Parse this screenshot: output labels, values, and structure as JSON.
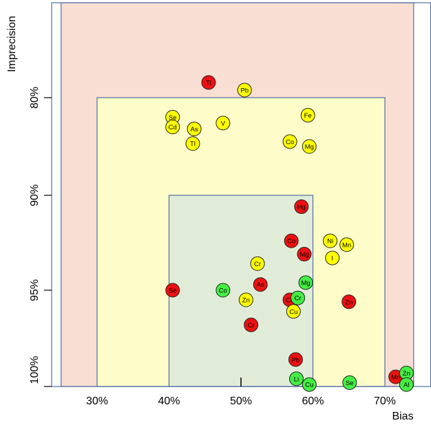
{
  "chart_data": {
    "type": "scatter",
    "xlabel": "Bias",
    "ylabel": "Imprecision",
    "x_ticks": [
      {
        "value": 30,
        "label": "30%"
      },
      {
        "value": 40,
        "label": "40%"
      },
      {
        "value": 50,
        "label": "50%"
      },
      {
        "value": 60,
        "label": "60%"
      },
      {
        "value": 70,
        "label": "70%"
      }
    ],
    "y_ticks": [
      {
        "value": 80,
        "label": "80%"
      },
      {
        "value": 90,
        "label": "90%"
      },
      {
        "value": 95,
        "label": "95%"
      },
      {
        "value": 100,
        "label": "100%"
      }
    ],
    "xlim": [
      25,
      74
    ],
    "zones": [
      {
        "name": "outer",
        "x": [
          25,
          74
        ],
        "y": [
          75,
          100
        ],
        "fill": "#f9dfd3"
      },
      {
        "name": "middle",
        "x": [
          30,
          70
        ],
        "y": [
          80,
          100
        ],
        "fill": "#fefcc9"
      },
      {
        "name": "inner",
        "x": [
          40,
          60
        ],
        "y": [
          90,
          100
        ],
        "fill": "#e1ecd8"
      }
    ],
    "colors": {
      "red": "#ee1111",
      "yellow": "#ffff00",
      "green": "#44ee44"
    },
    "series": [
      {
        "color": "red",
        "points": [
          {
            "label": "Tl",
            "x": 45.5,
            "y": 79.2
          },
          {
            "label": "Hg",
            "x": 58.4,
            "y": 90.6
          },
          {
            "label": "Co",
            "x": 57.0,
            "y": 92.4
          },
          {
            "label": "Mg",
            "x": 58.8,
            "y": 93.1
          },
          {
            "label": "As",
            "x": 52.7,
            "y": 94.7
          },
          {
            "label": "Se",
            "x": 40.5,
            "y": 95.0
          },
          {
            "label": "Cd",
            "x": 56.8,
            "y": 95.5
          },
          {
            "label": "Zn",
            "x": 65.0,
            "y": 95.6
          },
          {
            "label": "Cr",
            "x": 51.4,
            "y": 96.8
          },
          {
            "label": "Pb",
            "x": 57.6,
            "y": 98.6
          },
          {
            "label": "Mn",
            "x": 71.5,
            "y": 99.5
          }
        ]
      },
      {
        "color": "yellow",
        "points": [
          {
            "label": "Pb",
            "x": 50.5,
            "y": 79.6
          },
          {
            "label": "Fe",
            "x": 59.3,
            "y": 81.8
          },
          {
            "label": "Se",
            "x": 40.5,
            "y": 82.0
          },
          {
            "label": "V",
            "x": 47.5,
            "y": 82.6
          },
          {
            "label": "Cd",
            "x": 40.5,
            "y": 83.0
          },
          {
            "label": "As",
            "x": 43.5,
            "y": 83.2
          },
          {
            "label": "Co",
            "x": 56.8,
            "y": 84.5
          },
          {
            "label": "Tl",
            "x": 43.3,
            "y": 84.7
          },
          {
            "label": "Mg",
            "x": 59.5,
            "y": 85.0
          },
          {
            "label": "Ni",
            "x": 62.4,
            "y": 92.4
          },
          {
            "label": "Mn",
            "x": 64.7,
            "y": 92.6
          },
          {
            "label": "I",
            "x": 62.7,
            "y": 93.3
          },
          {
            "label": "Cr",
            "x": 52.3,
            "y": 93.6
          },
          {
            "label": "Zn",
            "x": 50.7,
            "y": 95.5
          },
          {
            "label": "Cu",
            "x": 57.3,
            "y": 96.1
          }
        ]
      },
      {
        "color": "green",
        "points": [
          {
            "label": "Mg",
            "x": 59.0,
            "y": 94.6
          },
          {
            "label": "Co",
            "x": 47.5,
            "y": 95.0
          },
          {
            "label": "Cr",
            "x": 57.9,
            "y": 95.4
          },
          {
            "label": "Li",
            "x": 57.7,
            "y": 99.6
          },
          {
            "label": "Cu",
            "x": 59.5,
            "y": 99.9
          },
          {
            "label": "Se",
            "x": 65.1,
            "y": 99.8
          },
          {
            "label": "Zn",
            "x": 73.0,
            "y": 99.3
          },
          {
            "label": "Al",
            "x": 73.0,
            "y": 99.9
          }
        ]
      }
    ]
  }
}
